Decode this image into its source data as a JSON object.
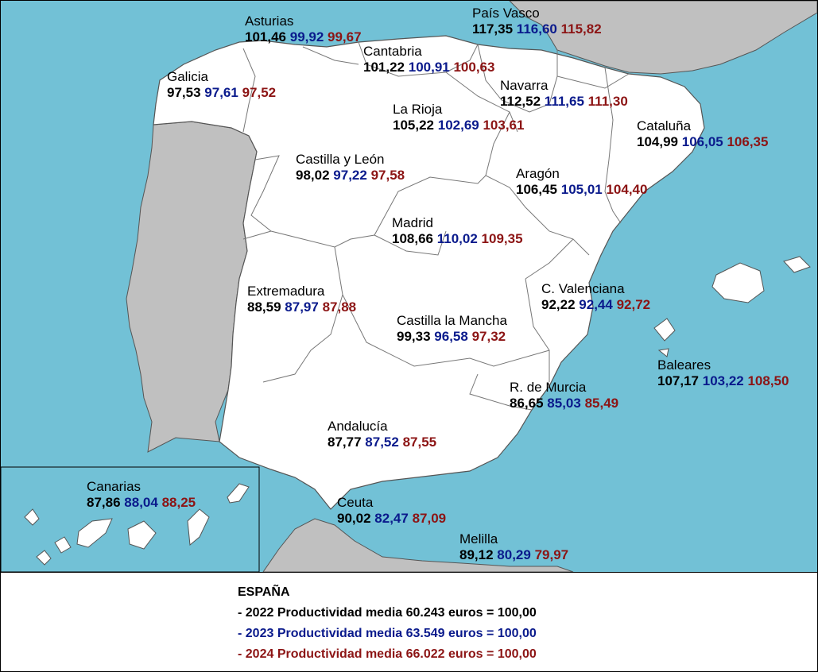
{
  "colors": {
    "sea": "#72c1d6",
    "land_spain": "#ffffff",
    "land_other": "#c0c0c0",
    "border": "#555555",
    "year_2022": "#000000",
    "year_2023": "#0a1a8c",
    "year_2024": "#8c1414"
  },
  "regions": [
    {
      "id": "asturias",
      "name": "Asturias",
      "v2022": "101,46",
      "v2023": "99,92",
      "v2024": "99,67"
    },
    {
      "id": "pais-vasco",
      "name": "País Vasco",
      "v2022": "117,35",
      "v2023": "116,60",
      "v2024": "115,82"
    },
    {
      "id": "cantabria",
      "name": "Cantabria",
      "v2022": "101,22",
      "v2023": "100,91",
      "v2024": "100,63"
    },
    {
      "id": "galicia",
      "name": "Galicia",
      "v2022": "97,53",
      "v2023": "97,61",
      "v2024": "97,52"
    },
    {
      "id": "navarra",
      "name": "Navarra",
      "v2022": "112,52",
      "v2023": "111,65",
      "v2024": "111,30"
    },
    {
      "id": "la-rioja",
      "name": "La Rioja",
      "v2022": "105,22",
      "v2023": "102,69",
      "v2024": "103,61"
    },
    {
      "id": "cataluna",
      "name": "Cataluña",
      "v2022": "104,99",
      "v2023": "106,05",
      "v2024": "106,35"
    },
    {
      "id": "castilla-leon",
      "name": "Castilla y León",
      "v2022": "98,02",
      "v2023": "97,22",
      "v2024": "97,58"
    },
    {
      "id": "aragon",
      "name": "Aragón",
      "v2022": "106,45",
      "v2023": "105,01",
      "v2024": "104,40"
    },
    {
      "id": "madrid",
      "name": "Madrid",
      "v2022": "108,66",
      "v2023": "110,02",
      "v2024": "109,35"
    },
    {
      "id": "c-valenciana",
      "name": "C. Valenciana",
      "v2022": "92,22",
      "v2023": "92,44",
      "v2024": "92,72"
    },
    {
      "id": "extremadura",
      "name": "Extremadura",
      "v2022": "88,59",
      "v2023": "87,97",
      "v2024": "87,88"
    },
    {
      "id": "castilla-la-mancha",
      "name": "Castilla la Mancha",
      "v2022": "99,33",
      "v2023": "96,58",
      "v2024": "97,32"
    },
    {
      "id": "baleares",
      "name": "Baleares",
      "v2022": "107,17",
      "v2023": "103,22",
      "v2024": "108,50"
    },
    {
      "id": "murcia",
      "name": "R. de Murcia",
      "v2022": "86,65",
      "v2023": "85,03",
      "v2024": "85,49"
    },
    {
      "id": "andalucia",
      "name": "Andalucía",
      "v2022": "87,77",
      "v2023": "87,52",
      "v2024": "87,55"
    },
    {
      "id": "canarias",
      "name": "Canarias",
      "v2022": "87,86",
      "v2023": "88,04",
      "v2024": "88,25"
    },
    {
      "id": "ceuta",
      "name": "Ceuta",
      "v2022": "90,02",
      "v2023": "82,47",
      "v2024": "87,09"
    },
    {
      "id": "melilla",
      "name": "Melilla",
      "v2022": "89,12",
      "v2023": "80,29",
      "v2024": "79,97"
    }
  ],
  "legend": {
    "title": "ESPAÑA",
    "line_2022": "- 2022 Productividad media 60.243 euros = 100,00",
    "line_2023": "- 2023 Productividad media 63.549 euros = 100,00",
    "line_2024": "- 2024 Productividad media 66.022 euros = 100,00"
  }
}
